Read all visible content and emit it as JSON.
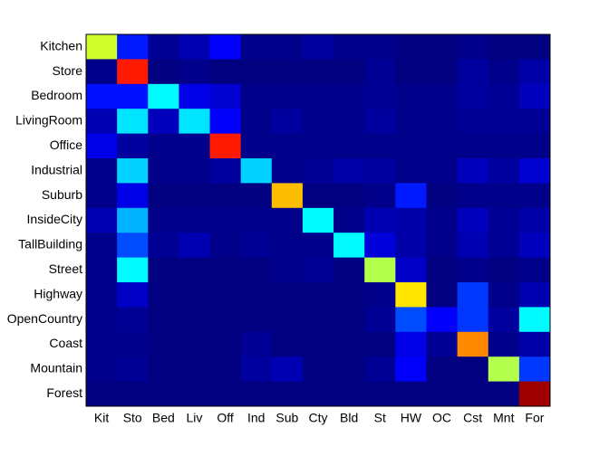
{
  "chart_data": {
    "type": "heatmap",
    "colormap": "jet",
    "clim": [
      0,
      1
    ],
    "x_categories": [
      "Kit",
      "Sto",
      "Bed",
      "Liv",
      "Off",
      "Ind",
      "Sub",
      "Cty",
      "Bld",
      "St",
      "HW",
      "OC",
      "Cst",
      "Mnt",
      "For"
    ],
    "y_categories": [
      "Kitchen",
      "Store",
      "Bedroom",
      "LivingRoom",
      "Office",
      "Industrial",
      "Suburb",
      "InsideCity",
      "TallBuilding",
      "Street",
      "Highway",
      "OpenCountry",
      "Coast",
      "Mountain",
      "Forest"
    ],
    "values": [
      [
        0.58,
        0.15,
        0.02,
        0.05,
        0.12,
        0.01,
        0.01,
        0.03,
        0.01,
        0.01,
        0.0,
        0.0,
        0.01,
        0.0,
        0.0
      ],
      [
        0.01,
        0.85,
        0.0,
        0.01,
        0.0,
        0.0,
        0.0,
        0.0,
        0.0,
        0.02,
        0.0,
        0.0,
        0.03,
        0.01,
        0.04
      ],
      [
        0.14,
        0.14,
        0.37,
        0.1,
        0.08,
        0.01,
        0.01,
        0.01,
        0.01,
        0.02,
        0.01,
        0.01,
        0.03,
        0.02,
        0.06
      ],
      [
        0.05,
        0.35,
        0.06,
        0.35,
        0.12,
        0.01,
        0.03,
        0.01,
        0.01,
        0.03,
        0.01,
        0.01,
        0.02,
        0.02,
        0.02
      ],
      [
        0.1,
        0.03,
        0.01,
        0.01,
        0.85,
        0.01,
        0.01,
        0.01,
        0.01,
        0.01,
        0.01,
        0.01,
        0.01,
        0.01,
        0.01
      ],
      [
        0.01,
        0.33,
        0.01,
        0.01,
        0.03,
        0.33,
        0.01,
        0.02,
        0.04,
        0.03,
        0.01,
        0.01,
        0.06,
        0.03,
        0.08
      ],
      [
        0.01,
        0.1,
        0.0,
        0.0,
        0.0,
        0.0,
        0.69,
        0.0,
        0.0,
        0.01,
        0.15,
        0.0,
        0.01,
        0.01,
        0.01
      ],
      [
        0.05,
        0.3,
        0.01,
        0.01,
        0.01,
        0.01,
        0.01,
        0.37,
        0.01,
        0.05,
        0.04,
        0.01,
        0.06,
        0.02,
        0.04
      ],
      [
        0.01,
        0.2,
        0.02,
        0.05,
        0.01,
        0.02,
        0.01,
        0.01,
        0.37,
        0.09,
        0.04,
        0.01,
        0.05,
        0.02,
        0.06
      ],
      [
        0.01,
        0.37,
        0.0,
        0.0,
        0.0,
        0.0,
        0.01,
        0.02,
        0.0,
        0.55,
        0.07,
        0.0,
        0.01,
        0.0,
        0.01
      ],
      [
        0.01,
        0.07,
        0.0,
        0.0,
        0.0,
        0.0,
        0.0,
        0.0,
        0.0,
        0.01,
        0.65,
        0.0,
        0.18,
        0.01,
        0.05
      ],
      [
        0.01,
        0.02,
        0.0,
        0.0,
        0.0,
        0.0,
        0.0,
        0.0,
        0.0,
        0.02,
        0.2,
        0.12,
        0.18,
        0.03,
        0.37
      ],
      [
        0.01,
        0.01,
        0.0,
        0.0,
        0.0,
        0.02,
        0.0,
        0.0,
        0.0,
        0.0,
        0.1,
        0.02,
        0.74,
        0.01,
        0.04
      ],
      [
        0.01,
        0.02,
        0.0,
        0.0,
        0.0,
        0.03,
        0.05,
        0.0,
        0.0,
        0.02,
        0.12,
        0.0,
        0.0,
        0.55,
        0.18
      ],
      [
        0.0,
        0.0,
        0.0,
        0.0,
        0.0,
        0.0,
        0.0,
        0.0,
        0.0,
        0.0,
        0.0,
        0.0,
        0.0,
        0.0,
        0.97
      ]
    ]
  }
}
